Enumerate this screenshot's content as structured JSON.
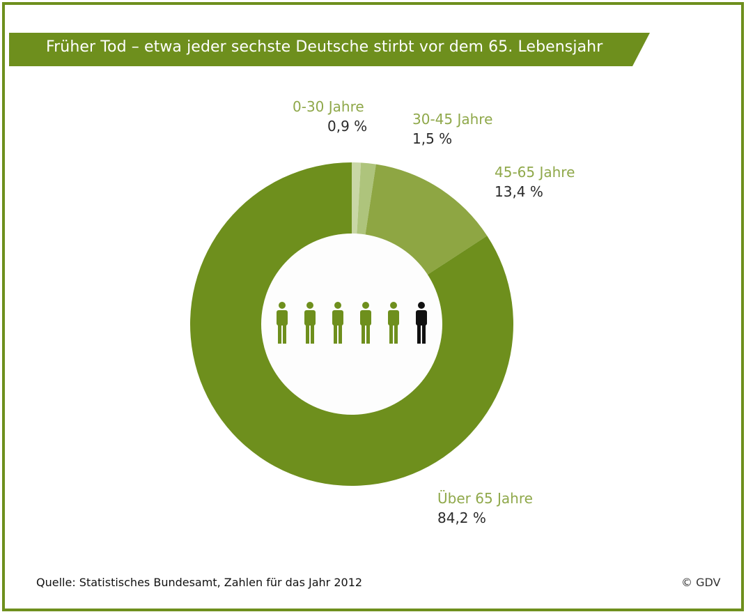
{
  "chart_data": {
    "type": "pie",
    "title": "Früher Tod – etwa jeder sechste Deutsche stirbt vor dem 65. Lebensjahr",
    "slices": [
      {
        "label": "0-30 Jahre",
        "value": 0.9,
        "value_label": "0,9 %",
        "color": "#c9d7a6",
        "label_color": "#c3d09e"
      },
      {
        "label": "30-45 Jahre",
        "value": 1.5,
        "value_label": "1,5 %",
        "color": "#aec47c",
        "label_color": "#9fb767"
      },
      {
        "label": "45-65 Jahre",
        "value": 13.4,
        "value_label": "13,4 %",
        "color": "#8ea643",
        "label_color": "#86a33a"
      },
      {
        "label": "Über 65 Jahre",
        "value": 84.2,
        "value_label": "84,2 %",
        "color": "#6e8f1d",
        "label_color": "#6e8f1d"
      }
    ],
    "donut": true,
    "center_icon": {
      "people_total": 6,
      "people_highlighted": 1,
      "green": "#6e8f1d",
      "black": "#111111"
    }
  },
  "footer": {
    "source": "Quelle: Statistisches Bundesamt, Zahlen für das Jahr 2012",
    "copyright": "© GDV"
  },
  "colors": {
    "frame": "#6e8f1d",
    "title_banner": "#6e8f1d"
  }
}
